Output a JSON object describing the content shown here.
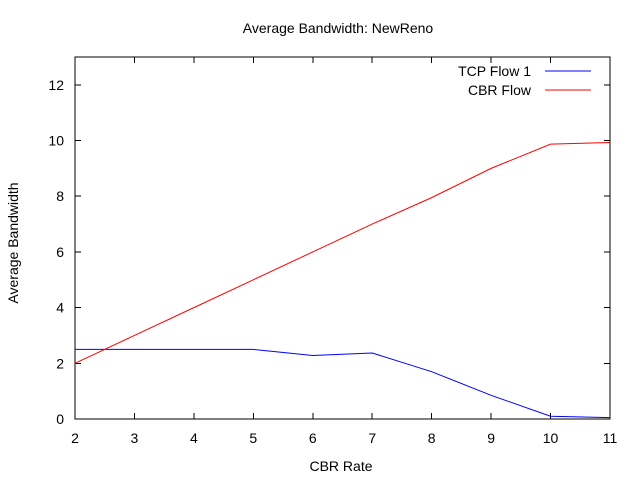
{
  "chart_data": {
    "type": "line",
    "title": "Average Bandwidth: NewReno",
    "xlabel": "CBR Rate",
    "ylabel": "Average Bandwidth",
    "xlim": [
      2,
      11
    ],
    "ylim": [
      0,
      13
    ],
    "xticks": [
      2,
      3,
      4,
      5,
      6,
      7,
      8,
      9,
      10,
      11
    ],
    "yticks": [
      0,
      2,
      4,
      6,
      8,
      10,
      12
    ],
    "grid": false,
    "legend_position": "top-right",
    "x": [
      2,
      3,
      4,
      5,
      6,
      7,
      8,
      9,
      10,
      11
    ],
    "series": [
      {
        "name": "TCP Flow 1",
        "color": "#0000ff",
        "values": [
          2.5,
          2.5,
          2.5,
          2.5,
          2.28,
          2.37,
          1.7,
          0.85,
          0.1,
          0.05
        ]
      },
      {
        "name": "CBR Flow",
        "color": "#ff0000",
        "values": [
          2.0,
          3.0,
          4.0,
          5.0,
          6.0,
          7.0,
          7.95,
          9.0,
          9.87,
          9.93
        ]
      }
    ]
  }
}
